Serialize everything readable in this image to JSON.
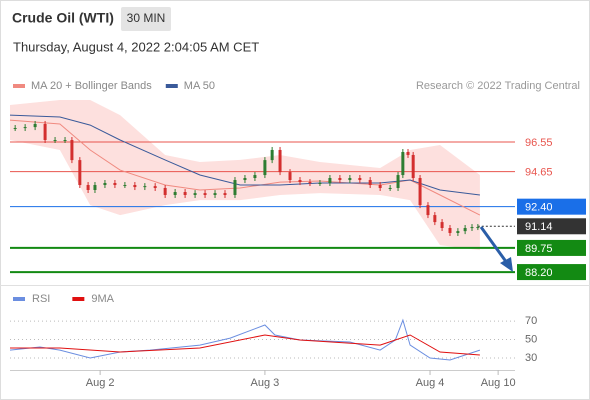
{
  "header": {
    "title": "Crude Oil (WTI)",
    "timeframe": "30 MIN",
    "timestamp": "Thursday, August 4, 2022 2:04:05 AM CET"
  },
  "chart_data": [
    {
      "type": "candlestick",
      "credit": "Research © 2022 Trading Central",
      "up_color": "#2e7d32",
      "down_color": "#d32f2f",
      "xlim": [
        0,
        146.8
      ],
      "ylim": [
        87.37,
        99.57
      ],
      "price": {
        "x": [
          1.5,
          4.4,
          7.3,
          10.2,
          13.1,
          16,
          18,
          20.3,
          22.7,
          24.7,
          27.6,
          30.5,
          33.4,
          36.3,
          39.2,
          42.2,
          45.1,
          48,
          50.9,
          53.8,
          56.7,
          59.6,
          62.5,
          65.4,
          68.3,
          71.2,
          74.1,
          76.2,
          78.5,
          81.4,
          84.3,
          87.2,
          90.1,
          93,
          95.9,
          98.8,
          101.7,
          104.7,
          107.6,
          110.5,
          112.8,
          114.2,
          115.7,
          117.2,
          119.2,
          121.5,
          123.5,
          125.6,
          127.9,
          130.2,
          132.3,
          134.3,
          136
        ],
        "values": [
          97.45,
          97.51,
          97.71,
          96.68,
          96.68,
          96.68,
          95.39,
          93.79,
          93.47,
          93.79,
          93.92,
          93.79,
          93.79,
          93.66,
          93.72,
          93.6,
          93.15,
          93.34,
          93.15,
          93.27,
          93.15,
          93.27,
          93.15,
          94.11,
          94.24,
          94.43,
          95.39,
          96.04,
          94.62,
          94.11,
          93.98,
          93.92,
          93.92,
          94.24,
          94.11,
          94.24,
          94.11,
          93.79,
          93.6,
          93.6,
          94.43,
          95.91,
          95.72,
          94.24,
          92.5,
          91.86,
          91.41,
          91.03,
          90.71,
          90.83,
          91.03,
          91.09,
          91.09
        ]
      },
      "series": [
        {
          "name": "MA 20 + Bollinger Bands",
          "color": "#f08a80",
          "band_color": "#fde0de",
          "x": [
            0,
            14.5,
            23.3,
            32,
            45.1,
            55.2,
            66.9,
            78.5,
            90.1,
            107.6,
            116.3,
            125,
            136.6
          ],
          "values": [
            97.96,
            97.71,
            96.04,
            94.75,
            93.79,
            93.47,
            93.6,
            93.98,
            94.05,
            93.79,
            94.11,
            93.15,
            91.86
          ],
          "upper": [
            98.93,
            99.25,
            99.25,
            98.28,
            95.72,
            95.27,
            95.4,
            95.72,
            95.27,
            94.88,
            96.04,
            96.36,
            94.43
          ],
          "lower": [
            96.68,
            96.04,
            92.5,
            91.86,
            92.5,
            92.82,
            92.82,
            93.15,
            93.27,
            93.15,
            92.82,
            89.93,
            89.61
          ]
        },
        {
          "name": "MA 50",
          "color": "#3a5a9a",
          "x": [
            0,
            14.5,
            23.3,
            32,
            45.1,
            55.2,
            66.9,
            78.5,
            90.1,
            107.6,
            116.3,
            125,
            136.6
          ],
          "values": [
            98.28,
            98.16,
            97.64,
            96.68,
            95.4,
            94.43,
            93.79,
            93.79,
            93.92,
            93.92,
            94.11,
            93.47,
            93.15
          ]
        }
      ],
      "levels": [
        {
          "value": 96.55,
          "label": "96.55",
          "color": "#e8554e",
          "tag": false
        },
        {
          "value": 94.65,
          "label": "94.65",
          "color": "#e8554e",
          "tag": false
        },
        {
          "value": 92.4,
          "label": "92.40",
          "color": "#1a6fe8",
          "tag": true
        },
        {
          "value": 91.14,
          "label": "91.14",
          "color": "#333333",
          "tag": true
        },
        {
          "value": 89.75,
          "label": "89.75",
          "color": "#138a13",
          "tag": true
        },
        {
          "value": 88.2,
          "label": "88.20",
          "color": "#138a13",
          "tag": true
        }
      ]
    },
    {
      "type": "line",
      "xlim": [
        0,
        146.8
      ],
      "ylim": [
        17,
        82
      ],
      "yticks": [
        30,
        50,
        70
      ],
      "grid": true,
      "xticks": [
        {
          "value": 26.2,
          "label": "Aug 2"
        },
        {
          "value": 74.1,
          "label": "Aug 3"
        },
        {
          "value": 122.1,
          "label": "Aug 4"
        },
        {
          "value": 141.9,
          "label": "Aug 10"
        }
      ],
      "series": [
        {
          "name": "RSI",
          "color": "#6b8ee0",
          "x": [
            0,
            8.7,
            14.5,
            23.3,
            32,
            40.7,
            55.2,
            64,
            74.1,
            77,
            84.3,
            98.8,
            107.6,
            112,
            114.2,
            116.3,
            122.1,
            127.9,
            136.6
          ],
          "values": [
            38.6,
            41.9,
            38.6,
            30,
            36.5,
            38.6,
            44,
            51.6,
            65.7,
            54.9,
            49.5,
            47.3,
            38.6,
            49.5,
            71.1,
            44,
            30,
            27.8,
            38.6
          ]
        },
        {
          "name": "9MA",
          "color": "#e01010",
          "x": [
            0,
            14.5,
            32,
            55.2,
            74.1,
            84.3,
            107.6,
            116.3,
            125,
            136.6
          ],
          "values": [
            40.8,
            40.8,
            36.5,
            40.8,
            54.9,
            49.5,
            44,
            54.9,
            36.5,
            33.2
          ]
        }
      ]
    }
  ]
}
